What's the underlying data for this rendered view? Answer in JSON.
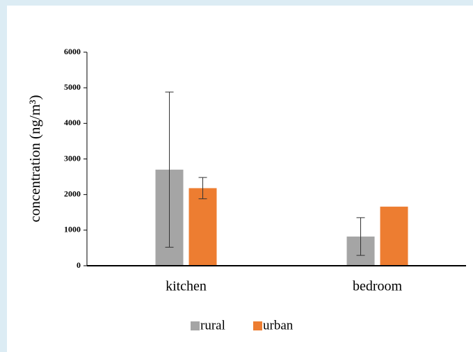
{
  "chart_data": {
    "type": "bar",
    "y_label": "concentration (ng/m³)",
    "categories": [
      "kitchen",
      "bedroom"
    ],
    "series": [
      {
        "name": "rural",
        "color": "#a5a5a5",
        "values": [
          2700,
          820
        ],
        "errors": [
          2180,
          530
        ]
      },
      {
        "name": "urban",
        "color": "#ed7d31",
        "values": [
          2180,
          1660
        ],
        "errors": [
          300,
          null
        ]
      }
    ],
    "ylim": [
      0,
      6000
    ],
    "yticks": [
      0,
      1000,
      2000,
      3000,
      4000,
      5000,
      6000
    ],
    "legend": "bottom"
  }
}
